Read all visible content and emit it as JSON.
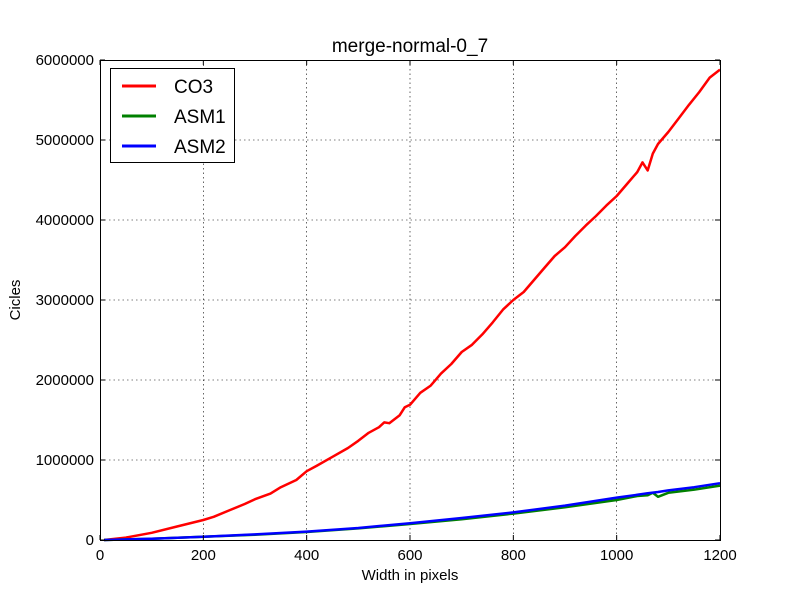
{
  "chart_data": {
    "type": "line",
    "title": "merge-normal-0_7",
    "xlabel": "Width in pixels",
    "ylabel": "Cicles",
    "xlim": [
      0,
      1200
    ],
    "ylim": [
      0,
      6000000
    ],
    "xticks": [
      0,
      200,
      400,
      600,
      800,
      1000,
      1200
    ],
    "xtick_labels": [
      "0",
      "200",
      "400",
      "600",
      "800",
      "1000",
      "1200"
    ],
    "yticks": [
      0,
      1000000,
      2000000,
      3000000,
      4000000,
      5000000,
      6000000
    ],
    "ytick_labels": [
      "0",
      "1000000",
      "2000000",
      "3000000",
      "4000000",
      "5000000",
      "6000000"
    ],
    "grid": true,
    "legend_position": "top-left",
    "series": [
      {
        "name": "CO3",
        "color": "#ff0000",
        "x": [
          8,
          50,
          100,
          150,
          200,
          220,
          250,
          280,
          300,
          330,
          350,
          380,
          400,
          420,
          450,
          480,
          500,
          520,
          540,
          550,
          560,
          580,
          590,
          600,
          620,
          640,
          660,
          680,
          700,
          720,
          740,
          760,
          780,
          800,
          820,
          840,
          860,
          880,
          900,
          920,
          940,
          960,
          980,
          1000,
          1020,
          1040,
          1050,
          1060,
          1070,
          1080,
          1100,
          1120,
          1140,
          1160,
          1180,
          1200
        ],
        "y": [
          0,
          30000,
          90000,
          170000,
          250000,
          290000,
          370000,
          450000,
          510000,
          580000,
          660000,
          750000,
          860000,
          930000,
          1040000,
          1150000,
          1240000,
          1340000,
          1410000,
          1470000,
          1460000,
          1560000,
          1660000,
          1690000,
          1840000,
          1930000,
          2080000,
          2200000,
          2350000,
          2440000,
          2570000,
          2720000,
          2880000,
          3000000,
          3100000,
          3250000,
          3400000,
          3550000,
          3660000,
          3800000,
          3930000,
          4050000,
          4180000,
          4300000,
          4450000,
          4600000,
          4720000,
          4620000,
          4830000,
          4950000,
          5100000,
          5270000,
          5440000,
          5600000,
          5780000,
          5880000
        ]
      },
      {
        "name": "ASM1",
        "color": "#008000",
        "x": [
          8,
          100,
          200,
          300,
          400,
          500,
          600,
          700,
          800,
          900,
          1000,
          1040,
          1060,
          1070,
          1080,
          1100,
          1150,
          1200
        ],
        "y": [
          0,
          15000,
          40000,
          65000,
          100000,
          145000,
          200000,
          260000,
          330000,
          410000,
          500000,
          550000,
          560000,
          590000,
          540000,
          590000,
          630000,
          680000
        ]
      },
      {
        "name": "ASM2",
        "color": "#0000ff",
        "x": [
          8,
          100,
          200,
          300,
          400,
          500,
          600,
          700,
          800,
          900,
          1000,
          1040,
          1060,
          1080,
          1100,
          1150,
          1200
        ],
        "y": [
          0,
          15000,
          40000,
          70000,
          105000,
          150000,
          210000,
          275000,
          345000,
          430000,
          530000,
          565000,
          585000,
          600000,
          620000,
          660000,
          710000
        ]
      }
    ]
  }
}
